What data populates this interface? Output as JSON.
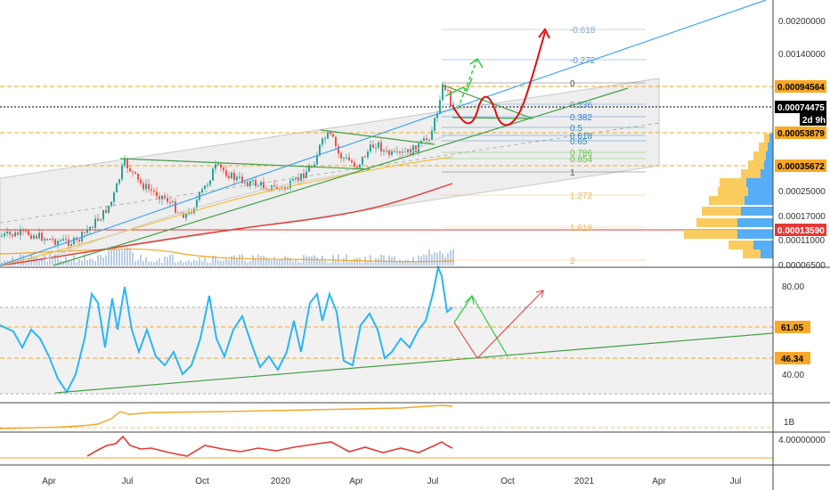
{
  "chart_data": {
    "type": "line",
    "title": "",
    "price_axis": {
      "ticks": [
        "0.00200000",
        "0.00140000",
        "0.00025000",
        "0.00017000",
        "0.00011000",
        "0.00006500"
      ],
      "tags": [
        {
          "label": "0.00094564",
          "color": "#f9a825",
          "text_color": "#000000"
        },
        {
          "label": "0.00074475",
          "color": "#000000",
          "text_color": "#ffffff"
        },
        {
          "label": "2d 9h",
          "color": "#000000",
          "text_color": "#ffffff"
        },
        {
          "label": "0.00053879",
          "color": "#f9a825",
          "text_color": "#000000"
        },
        {
          "label": "0.00035672",
          "color": "#f9a825",
          "text_color": "#000000"
        },
        {
          "label": "0.00013590",
          "color": "#e53935",
          "text_color": "#ffffff"
        }
      ]
    },
    "fib_levels": [
      {
        "label": "-0.618",
        "color": "#8aa4c8"
      },
      {
        "label": "-0.272",
        "color": "#5b8fd6"
      },
      {
        "label": "0",
        "color": "#555555"
      },
      {
        "label": "0.236",
        "color": "#5b8fd6"
      },
      {
        "label": "0.382",
        "color": "#3a7bd5"
      },
      {
        "label": "0.5",
        "color": "#2e86c1"
      },
      {
        "label": "0.618",
        "color": "#2e86c1"
      },
      {
        "label": "0.65",
        "color": "#2e86c1"
      },
      {
        "label": "0.786",
        "color": "#6abf4b"
      },
      {
        "label": "0.854",
        "color": "#6abf4b"
      },
      {
        "label": "1",
        "color": "#555555"
      },
      {
        "label": "1.272",
        "color": "#f0b35a"
      },
      {
        "label": "1.618",
        "color": "#f0b35a"
      },
      {
        "label": "2",
        "color": "#f0b35a"
      }
    ],
    "time_axis": [
      "Apr",
      "Jul",
      "Oct",
      "2020",
      "Apr",
      "Jul",
      "Oct",
      "2021",
      "Apr",
      "Jul"
    ],
    "rsi_panel": {
      "ticks": [
        "80.00",
        "40.00"
      ],
      "tags": [
        {
          "label": "61.05",
          "color": "#f9a825"
        },
        {
          "label": "46.34",
          "color": "#f9a825"
        }
      ]
    },
    "volume_panel": {
      "ticks": [
        "1B"
      ]
    },
    "indicator_panel": {
      "ticks": [
        "4.00000000"
      ]
    },
    "series_colors": {
      "candle_up": "#26a69a",
      "candle_down": "#ef5350",
      "rsi": "#29b6f6",
      "ma_red": "#e53935",
      "ma_orange": "#f5a623",
      "trend_green": "#43a047",
      "trend_blue": "#42a5f5",
      "forecast_red": "#e01010",
      "forecast_green": "#2ecc40"
    }
  }
}
